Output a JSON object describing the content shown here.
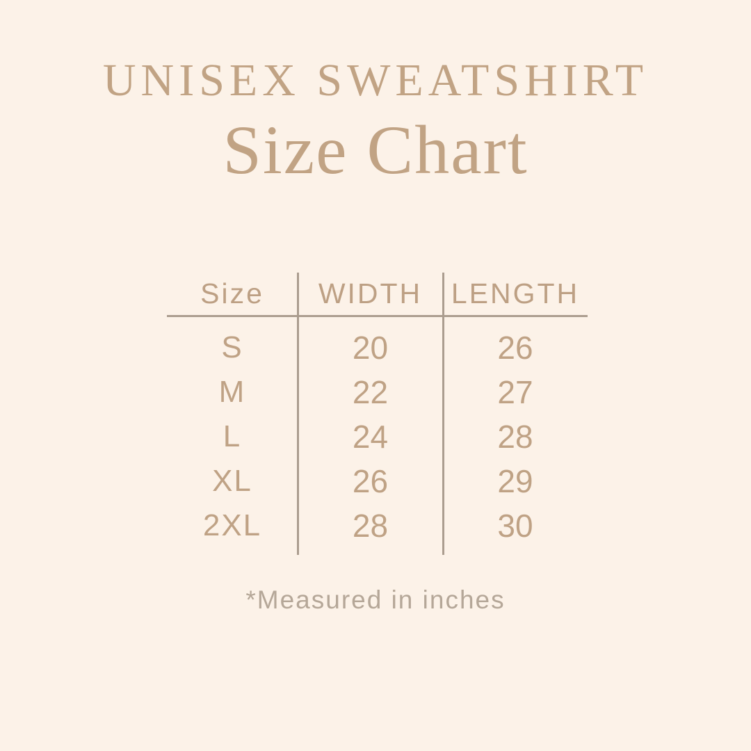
{
  "page": {
    "background_color": "#fcf2e8",
    "accent_color": "#c1a384",
    "table_text_color": "#bfa285",
    "line_color": "#ab9d8f",
    "footnote_color": "#b5a798"
  },
  "header": {
    "title": "UNISEX SWEATSHIRT",
    "subtitle": "Size Chart"
  },
  "chart_data": {
    "type": "table",
    "title": "UNISEX SWEATSHIRT",
    "subtitle": "Size Chart",
    "columns": [
      "Size",
      "WIDTH",
      "LENGTH"
    ],
    "rows": [
      [
        "S",
        "20",
        "26"
      ],
      [
        "M",
        "22",
        "27"
      ],
      [
        "L",
        "24",
        "28"
      ],
      [
        "XL",
        "26",
        "29"
      ],
      [
        "2XL",
        "28",
        "30"
      ]
    ],
    "units": "inches",
    "note": "*Measured in inches"
  }
}
